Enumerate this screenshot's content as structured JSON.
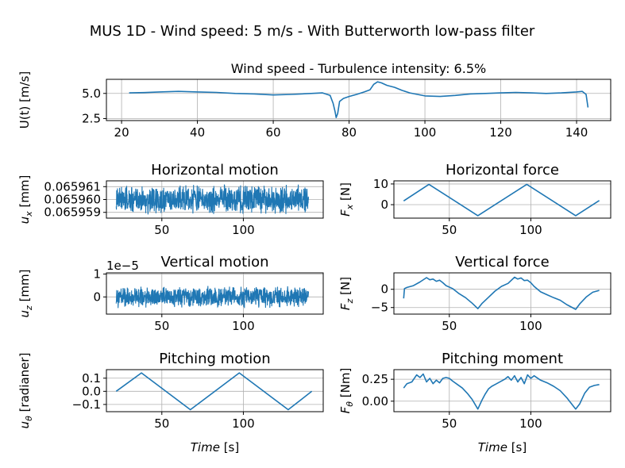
{
  "figure": {
    "suptitle": "MUS 1D - Wind speed: 5 m/s - With Butterworth low-pass filter"
  },
  "chart_data": [
    {
      "id": "wind",
      "type": "line",
      "title": "Wind speed - Turbulence intensity: 6.5%",
      "ylabel": "U(t) [m/s]",
      "xlabel": "",
      "xlim": [
        16,
        149
      ],
      "ylim": [
        2.3,
        6.4
      ],
      "xticks": [
        20,
        40,
        60,
        80,
        100,
        120,
        140
      ],
      "yticks": [
        2.5,
        5.0
      ],
      "ytick_labels": [
        "2.5",
        "5.0"
      ],
      "grid": true,
      "series": [
        {
          "color": "#1f77b4",
          "x": [
            22,
            26,
            30,
            35,
            40,
            45,
            50,
            55,
            60,
            65,
            70,
            73,
            75,
            75.8,
            76.3,
            76.6,
            77,
            77.5,
            78.5,
            80,
            82,
            84,
            85.5,
            86.5,
            87.5,
            88.5,
            90,
            92,
            94,
            96,
            98,
            100,
            104,
            108,
            112,
            116,
            120,
            124,
            128,
            132,
            136,
            140,
            141.5,
            142.5,
            143
          ],
          "y": [
            5.05,
            5.08,
            5.15,
            5.2,
            5.15,
            5.1,
            5.0,
            4.95,
            4.85,
            4.9,
            5.0,
            5.05,
            4.8,
            4.0,
            3.2,
            2.6,
            3.0,
            4.2,
            4.5,
            4.7,
            4.9,
            5.15,
            5.35,
            5.9,
            6.15,
            6.05,
            5.8,
            5.6,
            5.3,
            5.05,
            4.9,
            4.75,
            4.7,
            4.8,
            4.95,
            5.0,
            5.05,
            5.1,
            5.05,
            5.0,
            5.05,
            5.15,
            5.2,
            4.9,
            3.6
          ]
        }
      ]
    },
    {
      "id": "hmotion",
      "type": "line",
      "title": "Horizontal motion",
      "ylabel": "u_x [mm]",
      "xlabel": "",
      "xlim": [
        16,
        149
      ],
      "ylim": [
        0.06595855,
        0.06596145
      ],
      "xticks": [
        50,
        100
      ],
      "yticks": [
        0.065959,
        0.06596,
        0.065961
      ],
      "ytick_labels": [
        "0.065959",
        "0.065960",
        "0.065961"
      ],
      "grid": true,
      "noise": {
        "x_start": 22,
        "x_end": 140,
        "center": 0.06596,
        "amplitude": 1.2e-06
      }
    },
    {
      "id": "hforce",
      "type": "line",
      "title": "Horizontal force",
      "ylabel": "F_x [N]",
      "xlabel": "",
      "xlim": [
        16,
        149
      ],
      "ylim": [
        -6.5,
        11.5
      ],
      "xticks": [
        50,
        100
      ],
      "yticks": [
        0,
        10
      ],
      "ytick_labels": [
        "0",
        "10"
      ],
      "grid": true,
      "series": [
        {
          "color": "#1f77b4",
          "x": [
            22,
            37.5,
            67.5,
            97.5,
            127.5,
            142
          ],
          "y": [
            1.8,
            9.8,
            -5.3,
            9.8,
            -5.3,
            2.0
          ]
        }
      ]
    },
    {
      "id": "vmotion",
      "type": "line",
      "title": "Vertical motion",
      "ylabel": "u_z [mm]",
      "xlabel": "",
      "offset_text": "1e−5",
      "xlim": [
        16,
        149
      ],
      "ylim": [
        -0.75,
        1.05
      ],
      "xticks": [
        50,
        100
      ],
      "yticks": [
        0,
        1
      ],
      "ytick_labels": [
        "0",
        "1"
      ],
      "grid": true,
      "noise": {
        "x_start": 22,
        "x_end": 140,
        "center": 0,
        "amplitude": 0.5
      }
    },
    {
      "id": "vforce",
      "type": "line",
      "title": "Vertical force",
      "ylabel": "F_z [N]",
      "xlabel": "",
      "xlim": [
        16,
        149
      ],
      "ylim": [
        -6.8,
        4.5
      ],
      "xticks": [
        50,
        100
      ],
      "yticks": [
        -5,
        0
      ],
      "ytick_labels": [
        "−5",
        "0"
      ],
      "grid": true,
      "series": [
        {
          "color": "#1f77b4",
          "x": [
            22,
            22.5,
            24,
            28,
            32,
            36,
            38,
            40,
            42,
            44,
            46,
            48,
            52,
            56,
            60,
            64,
            67.5,
            70,
            74,
            78,
            82,
            86,
            90,
            92,
            94,
            96,
            98,
            100,
            102,
            106,
            110,
            114,
            118,
            122,
            127.5,
            130,
            134,
            138,
            142
          ],
          "y": [
            -2.5,
            0.2,
            0.5,
            1.0,
            2.0,
            3.2,
            2.6,
            2.8,
            2.2,
            2.5,
            1.8,
            1.0,
            0.2,
            -1.2,
            -2.3,
            -3.8,
            -5.3,
            -3.9,
            -2.2,
            -0.5,
            0.8,
            1.6,
            3.3,
            2.8,
            3.1,
            2.4,
            2.5,
            1.8,
            0.8,
            -0.7,
            -1.5,
            -2.3,
            -3.0,
            -4.2,
            -5.5,
            -4.0,
            -2.1,
            -0.8,
            -0.3
          ]
        }
      ]
    },
    {
      "id": "pmotion",
      "type": "line",
      "title": "Pitching motion",
      "ylabel": "u_θ [radianer]",
      "xlabel": "Time [s]",
      "xlim": [
        16,
        149
      ],
      "ylim": [
        -0.155,
        0.165
      ],
      "xticks": [
        50,
        100
      ],
      "yticks": [
        -0.1,
        0.0,
        0.1
      ],
      "ytick_labels": [
        "−0.1",
        "0.0",
        "0.1"
      ],
      "grid": true,
      "series": [
        {
          "color": "#1f77b4",
          "x": [
            22,
            37.5,
            67.5,
            97.5,
            127.5,
            142
          ],
          "y": [
            0.0,
            0.14,
            -0.14,
            0.14,
            -0.14,
            0.0
          ]
        }
      ]
    },
    {
      "id": "pmoment",
      "type": "line",
      "title": "Pitching moment",
      "ylabel": "F_θ [Nm]",
      "xlabel": "Time [s]",
      "xlim": [
        16,
        149
      ],
      "ylim": [
        -0.12,
        0.36
      ],
      "xticks": [
        50,
        100
      ],
      "yticks": [
        0.0,
        0.25
      ],
      "ytick_labels": [
        "0.00",
        "0.25"
      ],
      "grid": true,
      "series": [
        {
          "color": "#1f77b4",
          "x": [
            22,
            24,
            27,
            30,
            32,
            34,
            36,
            38,
            40,
            42,
            44,
            46,
            48,
            50,
            52,
            55,
            58,
            61,
            64,
            67.5,
            70,
            72,
            74,
            76,
            78,
            80,
            84,
            86,
            88,
            90,
            92,
            94,
            96,
            98,
            100,
            102,
            106,
            110,
            114,
            118,
            122,
            125,
            127.5,
            130,
            133,
            136,
            139,
            142
          ],
          "y": [
            0.15,
            0.2,
            0.22,
            0.3,
            0.27,
            0.31,
            0.22,
            0.26,
            0.2,
            0.24,
            0.21,
            0.26,
            0.27,
            0.26,
            0.23,
            0.19,
            0.15,
            0.09,
            0.02,
            -0.09,
            0.01,
            0.08,
            0.14,
            0.17,
            0.19,
            0.21,
            0.25,
            0.28,
            0.24,
            0.29,
            0.22,
            0.27,
            0.2,
            0.3,
            0.26,
            0.29,
            0.24,
            0.21,
            0.17,
            0.12,
            0.04,
            -0.03,
            -0.09,
            -0.03,
            0.09,
            0.16,
            0.18,
            0.19
          ]
        }
      ]
    }
  ]
}
